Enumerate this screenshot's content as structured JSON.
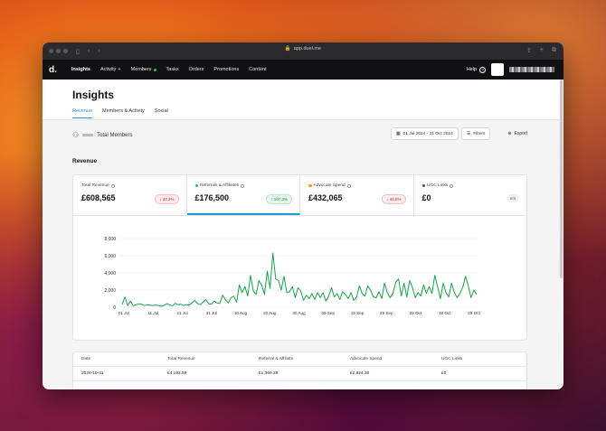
{
  "browser": {
    "url": "app.duel.me"
  },
  "nav": {
    "logo": "d.",
    "items": [
      {
        "label": "Insights",
        "active": true
      },
      {
        "label": "Activity",
        "dot": false,
        "extra": "+"
      },
      {
        "label": "Members",
        "dot": true
      },
      {
        "label": "Tasks"
      },
      {
        "label": "Orders"
      },
      {
        "label": "Promotions"
      },
      {
        "label": "Content"
      }
    ],
    "help": "Help",
    "help_icon": "?"
  },
  "page": {
    "title": "Insights",
    "tabs": [
      "Revenue",
      "Members & Activity",
      "Social"
    ]
  },
  "toolbar": {
    "members_label": "Total Members",
    "date_range": "01 Jul 2024 - 31 Oct 2024",
    "filters": "Filters",
    "export": "Export"
  },
  "section": {
    "title": "Revenue"
  },
  "metrics": [
    {
      "label": "Total Revenue",
      "value": "£608,565",
      "change": "32.2%",
      "direction": "down",
      "dot_color": ""
    },
    {
      "label": "Referrals & Affiliates",
      "value": "£176,500",
      "change": "107.3%",
      "direction": "up",
      "dot_color": "#22c55e"
    },
    {
      "label": "Advocate Spend",
      "value": "£432,065",
      "change": "46.8%",
      "direction": "down",
      "dot_color": "#f59e0b"
    },
    {
      "label": "UGC Links",
      "value": "£0",
      "change": "n/a",
      "direction": "na",
      "dot_color": "#555555"
    }
  ],
  "chart_data": {
    "type": "line",
    "x_ticks": [
      "01 Jul",
      "11 Jul",
      "21 Jul",
      "31 Jul",
      "10 Aug",
      "20 Aug",
      "30 Aug",
      "09 Sep",
      "19 Sep",
      "29 Sep",
      "09 Oct",
      "19 Oct",
      "29 Oct"
    ],
    "y_ticks": [
      "0",
      "2,000",
      "4,000",
      "6,000",
      "8,000"
    ],
    "ylim": [
      0,
      8000
    ],
    "grid": true,
    "color": "#16a34a",
    "values": [
      300,
      1200,
      200,
      700,
      150,
      300,
      400,
      350,
      200,
      300,
      250,
      200,
      250,
      200,
      100,
      200,
      400,
      300,
      150,
      450,
      300,
      350,
      200,
      300,
      250,
      500,
      800,
      450,
      300,
      600,
      900,
      400,
      350,
      700,
      500,
      450,
      1400,
      900,
      500,
      1100,
      1300,
      600,
      2600,
      1700,
      2400,
      1300,
      3700,
      1900,
      1500,
      3100,
      2600,
      1500,
      4200,
      2200,
      6300,
      3300,
      3100,
      2000,
      3600,
      1700,
      1800,
      2400,
      1100,
      2300,
      1900,
      800,
      1400,
      1000,
      1600,
      900,
      1700,
      1100,
      1700,
      700,
      1300,
      2300,
      1200,
      1600,
      900,
      1800,
      1500,
      1000,
      1700,
      800,
      1200,
      2500,
      1600,
      1300,
      2500,
      2000,
      1200,
      1100,
      1800,
      1000,
      2800,
      1700,
      1100,
      1600,
      2900,
      3300,
      1300,
      2800,
      1200,
      3100,
      2300,
      1100,
      1700,
      1300,
      2600,
      1600,
      2400,
      1600,
      3700,
      2400,
      1000,
      2800,
      1700,
      1200,
      2800,
      1700,
      1100,
      1600,
      2300,
      3600,
      2500,
      1100,
      2000,
      1500
    ]
  },
  "table": {
    "headers": [
      "Date",
      "Total Revenue",
      "Referral & Affiliate",
      "Advocate Spend",
      "UGC Links"
    ],
    "rows": [
      [
        "2024-10-31",
        "£4,193.59",
        "£1,369.29",
        "£2,824.30",
        "£0"
      ]
    ]
  }
}
